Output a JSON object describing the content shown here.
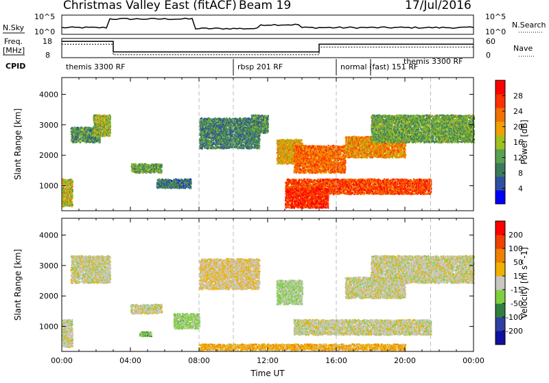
{
  "header": {
    "title": "Christmas Valley East (fitACF)",
    "beam": "Beam 19",
    "date": "17/Jul/2016"
  },
  "status_panels": {
    "nsky_label": "N.Sky",
    "nsky_ticks": [
      "10^5",
      "10^0"
    ],
    "nsearch_label": "N.Search",
    "nsearch_ticks": [
      "10^5",
      "10^0"
    ],
    "freq_label": "Freq.",
    "freq_unit": "[MHz]",
    "freq_ticks": [
      "18",
      "8"
    ],
    "nave_label": "Nave",
    "nave_ticks": [
      "60",
      "0"
    ],
    "cpid_label": "CPID",
    "cpid_segments": [
      {
        "label": "themis 3300 RF",
        "start_hr": 0,
        "end_hr": 10
      },
      {
        "label": "rbsp 201 RF",
        "start_hr": 10,
        "end_hr": 16
      },
      {
        "label": "normal (fast) 151 RF",
        "start_hr": 16,
        "end_hr": 18
      },
      {
        "label": "themis 3300 RF",
        "start_hr": 18,
        "end_hr": 24
      }
    ]
  },
  "colors": {
    "power_scale": [
      "#0000ff",
      "#2f4f9f",
      "#3c7a5a",
      "#5aa050",
      "#a0c020",
      "#f0a000",
      "#f07000",
      "#ff3000",
      "#ff0000"
    ],
    "velocity_scale": [
      "#1010a0",
      "#303fa0",
      "#2f7f3f",
      "#7fcf3f",
      "#c8c8c0",
      "#f0b000",
      "#f08000",
      "#f04000",
      "#ff0000"
    ],
    "ground_scatter": "#c8c8c0"
  },
  "chart_data": [
    {
      "type": "heatmap",
      "panel": "power",
      "xlabel": "Time UT",
      "ylabel": "Slant Range [km]",
      "x_ticks": [
        "00:00",
        "04:00",
        "08:00",
        "12:00",
        "16:00",
        "20:00",
        "00:00"
      ],
      "xlim_hours": [
        0,
        24
      ],
      "ylim": [
        180,
        4550
      ],
      "y_ticks": [
        1000,
        2000,
        3000,
        4000
      ],
      "colorbar_label": "Power [dB]",
      "colorbar_ticks": [
        4,
        8,
        12,
        16,
        20,
        24,
        28
      ],
      "clim": [
        0,
        30
      ],
      "features": [
        {
          "t": [
            0.0,
            0.6
          ],
          "r": [
            300,
            1200
          ],
          "value": 16
        },
        {
          "t": [
            0.5,
            2.2
          ],
          "r": [
            2400,
            2900
          ],
          "value": 10
        },
        {
          "t": [
            1.8,
            2.8
          ],
          "r": [
            2600,
            3300
          ],
          "value": 14
        },
        {
          "t": [
            4.0,
            5.8
          ],
          "r": [
            1400,
            1700
          ],
          "value": 12
        },
        {
          "t": [
            5.5,
            7.5
          ],
          "r": [
            900,
            1200
          ],
          "value": 8
        },
        {
          "t": [
            8.0,
            11.5
          ],
          "r": [
            2200,
            3200
          ],
          "value": 9
        },
        {
          "t": [
            11.0,
            12.0
          ],
          "r": [
            2700,
            3300
          ],
          "value": 10
        },
        {
          "t": [
            12.5,
            14.0
          ],
          "r": [
            1700,
            2500
          ],
          "value": 18
        },
        {
          "t": [
            13.5,
            16.5
          ],
          "r": [
            1400,
            2300
          ],
          "value": 22
        },
        {
          "t": [
            13.0,
            21.5
          ],
          "r": [
            700,
            1200
          ],
          "value": 24
        },
        {
          "t": [
            13.0,
            15.5
          ],
          "r": [
            250,
            900
          ],
          "value": 26
        },
        {
          "t": [
            16.5,
            20.0
          ],
          "r": [
            1900,
            2600
          ],
          "value": 20
        },
        {
          "t": [
            18.0,
            24.0
          ],
          "r": [
            2400,
            3300
          ],
          "value": 12
        }
      ]
    },
    {
      "type": "heatmap",
      "panel": "velocity",
      "xlabel": "Time UT",
      "ylabel": "Slant Range [km]",
      "x_ticks": [
        "00:00",
        "04:00",
        "08:00",
        "12:00",
        "16:00",
        "20:00",
        "00:00"
      ],
      "xlim_hours": [
        0,
        24
      ],
      "ylim": [
        180,
        4550
      ],
      "y_ticks": [
        1000,
        2000,
        3000,
        4000
      ],
      "colorbar_label": "Velocity [m s^-1]",
      "colorbar_ticks": [
        200,
        100,
        50,
        15,
        -15,
        -50,
        -100,
        -200
      ],
      "clim": [
        -250,
        250
      ],
      "features": [
        {
          "t": [
            0.0,
            0.6
          ],
          "r": [
            300,
            1200
          ],
          "value": 0
        },
        {
          "t": [
            0.5,
            2.8
          ],
          "r": [
            2400,
            3300
          ],
          "value": 0
        },
        {
          "t": [
            4.0,
            5.8
          ],
          "r": [
            1400,
            1700
          ],
          "value": 0
        },
        {
          "t": [
            4.5,
            5.2
          ],
          "r": [
            650,
            800
          ],
          "value": 60
        },
        {
          "t": [
            6.5,
            8.0
          ],
          "r": [
            900,
            1400
          ],
          "value": 40
        },
        {
          "t": [
            8.0,
            11.5
          ],
          "r": [
            2200,
            3200
          ],
          "value": -20
        },
        {
          "t": [
            12.5,
            14.0
          ],
          "r": [
            1700,
            2500
          ],
          "value": 30
        },
        {
          "t": [
            13.5,
            21.5
          ],
          "r": [
            700,
            1200
          ],
          "value": 0
        },
        {
          "t": [
            16.5,
            20.0
          ],
          "r": [
            1900,
            2600
          ],
          "value": 0
        },
        {
          "t": [
            18.0,
            24.0
          ],
          "r": [
            2400,
            3300
          ],
          "value": 0
        },
        {
          "t": [
            8.0,
            20.0
          ],
          "r": [
            200,
            400
          ],
          "value": -60
        }
      ]
    }
  ]
}
